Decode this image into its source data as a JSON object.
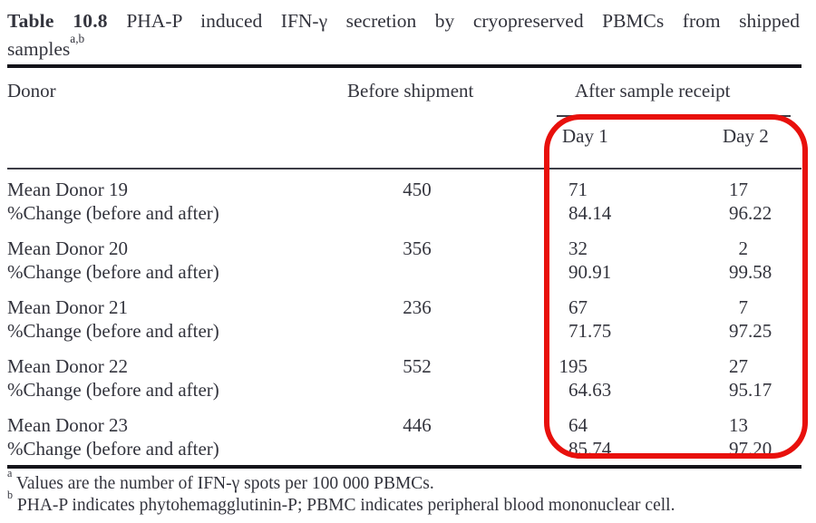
{
  "title": {
    "label": "Table 10.8",
    "line1": "PHA-P induced IFN-γ secretion by cryopreserved PBMCs from shipped",
    "line2": "samples",
    "sup": "a,b"
  },
  "table": {
    "headers": {
      "donor": "Donor",
      "before": "Before shipment",
      "after": "After sample receipt",
      "day1": "Day 1",
      "day2": "Day 2"
    },
    "change_label": "%Change (before and after)",
    "rows": [
      {
        "donor": "Mean Donor 19",
        "before": "450",
        "day1": "71",
        "day2": "17",
        "day1_change": "84.14",
        "day2_change": "96.22"
      },
      {
        "donor": "Mean Donor 20",
        "before": "356",
        "day1": "32",
        "day2": "2",
        "day1_change": "90.91",
        "day2_change": "99.58"
      },
      {
        "donor": "Mean Donor 21",
        "before": "236",
        "day1": "67",
        "day2": "7",
        "day1_change": "71.75",
        "day2_change": "97.25"
      },
      {
        "donor": "Mean Donor 22",
        "before": "552",
        "day1": "195",
        "day2": "27",
        "day1_change": "64.63",
        "day2_change": "95.17"
      },
      {
        "donor": "Mean Donor 23",
        "before": "446",
        "day1": "64",
        "day2": "13",
        "day1_change": "85.74",
        "day2_change": "97.20"
      }
    ]
  },
  "footnotes": [
    {
      "sup": "a",
      "text": "Values are the number of IFN-γ spots per 100 000 PBMCs."
    },
    {
      "sup": "b",
      "text": "PHA-P indicates phytohemagglutinin-P; PBMC indicates peripheral blood mononuclear cell."
    }
  ],
  "annotation": {
    "color": "#e8100c"
  }
}
